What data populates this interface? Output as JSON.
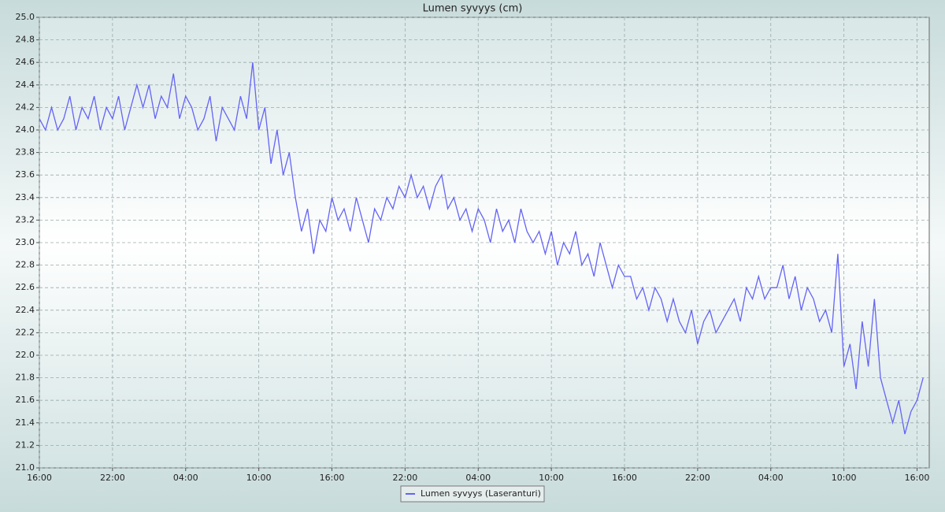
{
  "chart_data": {
    "type": "line",
    "title": "Lumen syvyys (cm)",
    "x": [
      0,
      0.5,
      1,
      1.5,
      2,
      2.5,
      3,
      3.5,
      4,
      4.5,
      5,
      5.5,
      6,
      6.5,
      7,
      7.5,
      8,
      8.5,
      9,
      9.5,
      10,
      10.5,
      11,
      11.5,
      12,
      12.5,
      13,
      13.5,
      14,
      14.5,
      15,
      15.5,
      16,
      16.5,
      17,
      17.5,
      18,
      18.5,
      19,
      19.5,
      20,
      20.5,
      21,
      21.5,
      22,
      22.5,
      23,
      23.5,
      24,
      24.5,
      25,
      25.5,
      26,
      26.5,
      27,
      27.5,
      28,
      28.5,
      29,
      29.5,
      30,
      30.5,
      31,
      31.5,
      32,
      32.5,
      33,
      33.5,
      34,
      34.5,
      35,
      35.5,
      36,
      36.5,
      37,
      37.5,
      38,
      38.5,
      39,
      39.5,
      40,
      40.5,
      41,
      41.5,
      42,
      42.5,
      43,
      43.5,
      44,
      44.5,
      45,
      45.5,
      46,
      46.5,
      47,
      47.5,
      48,
      48.5,
      49,
      49.5,
      50,
      50.5,
      51,
      51.5,
      52,
      52.5,
      53,
      53.5,
      54,
      54.5,
      55,
      55.5,
      56,
      56.5,
      57,
      57.5,
      58,
      58.5,
      59,
      59.5,
      60,
      60.5,
      61,
      61.5,
      62,
      62.5,
      63,
      63.5,
      64,
      64.5,
      65,
      65.5,
      66,
      66.5,
      67,
      67.5,
      68,
      68.5,
      69,
      69.5,
      70,
      70.5,
      71,
      71.5,
      72,
      72.5
    ],
    "series": [
      {
        "name": "Lumen syvyys (Laseranturi)",
        "color": "#6464f5",
        "values": [
          24.1,
          24.0,
          24.2,
          24.0,
          24.1,
          24.3,
          24.0,
          24.2,
          24.1,
          24.3,
          24.0,
          24.2,
          24.1,
          24.3,
          24.0,
          24.2,
          24.4,
          24.2,
          24.4,
          24.1,
          24.3,
          24.2,
          24.5,
          24.1,
          24.3,
          24.2,
          24.0,
          24.1,
          24.3,
          23.9,
          24.2,
          24.1,
          24.0,
          24.3,
          24.1,
          24.6,
          24.0,
          24.2,
          23.7,
          24.0,
          23.6,
          23.8,
          23.4,
          23.1,
          23.3,
          22.9,
          23.2,
          23.1,
          23.4,
          23.2,
          23.3,
          23.1,
          23.4,
          23.2,
          23.0,
          23.3,
          23.2,
          23.4,
          23.3,
          23.5,
          23.4,
          23.6,
          23.4,
          23.5,
          23.3,
          23.5,
          23.6,
          23.3,
          23.4,
          23.2,
          23.3,
          23.1,
          23.3,
          23.2,
          23.0,
          23.3,
          23.1,
          23.2,
          23.0,
          23.3,
          23.1,
          23.0,
          23.1,
          22.9,
          23.1,
          22.8,
          23.0,
          22.9,
          23.1,
          22.8,
          22.9,
          22.7,
          23.0,
          22.8,
          22.6,
          22.8,
          22.7,
          22.7,
          22.5,
          22.6,
          22.4,
          22.6,
          22.5,
          22.3,
          22.5,
          22.3,
          22.2,
          22.4,
          22.1,
          22.3,
          22.4,
          22.2,
          22.3,
          22.4,
          22.5,
          22.3,
          22.6,
          22.5,
          22.7,
          22.5,
          22.6,
          22.6,
          22.8,
          22.5,
          22.7,
          22.4,
          22.6,
          22.5,
          22.3,
          22.4,
          22.2,
          22.9,
          21.9,
          22.1,
          21.7,
          22.3,
          21.9,
          22.5,
          21.8,
          21.6,
          21.4,
          21.6,
          21.3,
          21.5,
          21.6,
          21.8
        ]
      }
    ],
    "xlim": [
      0,
      73
    ],
    "xticks": [
      {
        "value": 0,
        "label": "16:00"
      },
      {
        "value": 6,
        "label": "22:00"
      },
      {
        "value": 12,
        "label": "04:00"
      },
      {
        "value": 18,
        "label": "10:00"
      },
      {
        "value": 24,
        "label": "16:00"
      },
      {
        "value": 30,
        "label": "22:00"
      },
      {
        "value": 36,
        "label": "04:00"
      },
      {
        "value": 42,
        "label": "10:00"
      },
      {
        "value": 48,
        "label": "16:00"
      },
      {
        "value": 54,
        "label": "22:00"
      },
      {
        "value": 60,
        "label": "04:00"
      },
      {
        "value": 66,
        "label": "10:00"
      },
      {
        "value": 72,
        "label": "16:00"
      }
    ],
    "ylim": [
      21,
      25
    ],
    "yticks": [
      {
        "value": 21,
        "label": "21.0"
      },
      21.2,
      21.4,
      21.6,
      21.8,
      {
        "value": 22,
        "label": "22.0"
      },
      22.2,
      22.4,
      22.6,
      22.8,
      {
        "value": 23,
        "label": "23.0"
      },
      23.2,
      23.4,
      23.6,
      23.8,
      {
        "value": 24,
        "label": "24.0"
      },
      24.2,
      24.4,
      24.6,
      24.8,
      {
        "value": 25,
        "label": "25.0"
      }
    ],
    "grid": true
  }
}
